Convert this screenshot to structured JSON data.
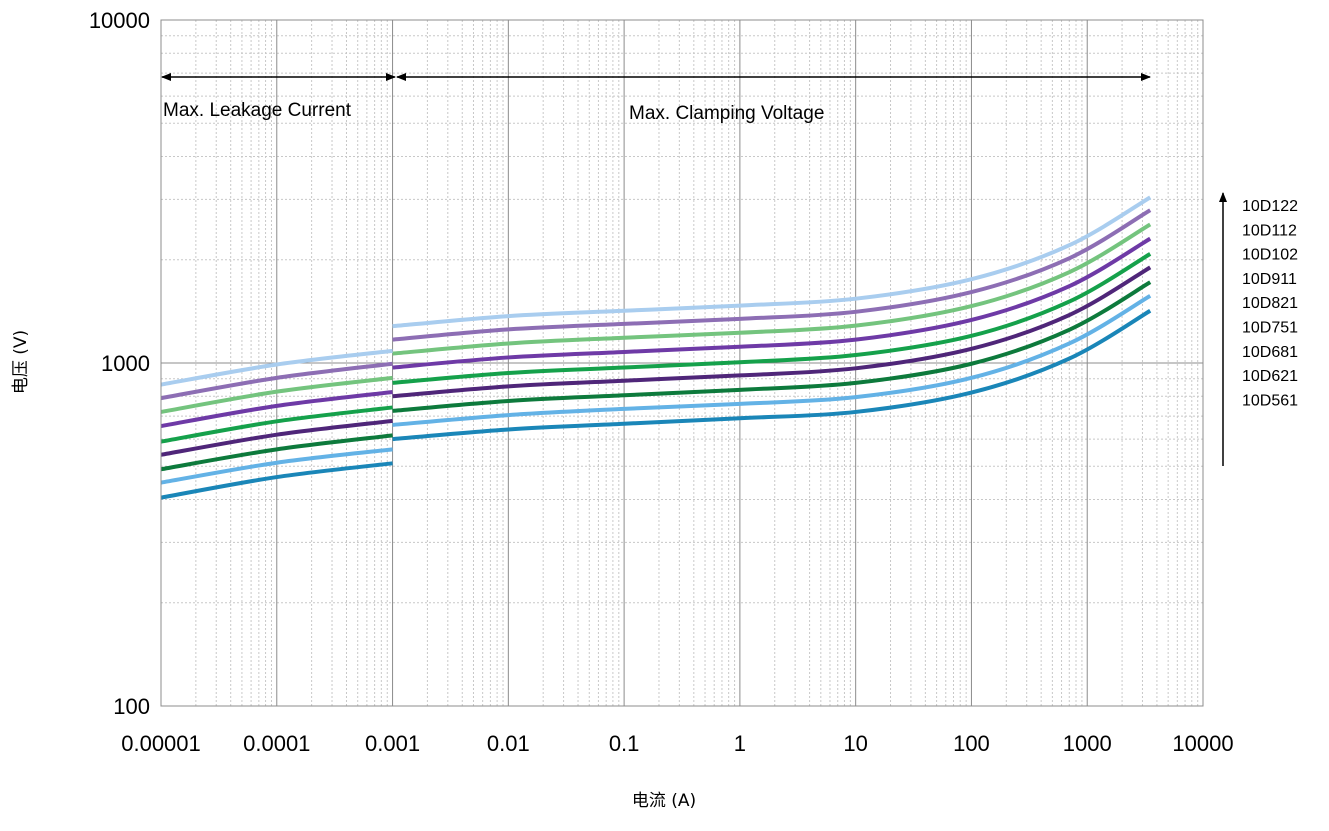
{
  "chart_data": {
    "type": "line",
    "title": "",
    "xlabel": "电流 (A)",
    "ylabel": "电压 (V)",
    "x_scale": "log",
    "y_scale": "log",
    "xlim": [
      1e-05,
      10000
    ],
    "ylim": [
      100,
      10000
    ],
    "grid": true,
    "x_ticks": [
      "0.00001",
      "0.0001",
      "0.001",
      "0.01",
      "0.1",
      "1",
      "10",
      "100",
      "1000",
      "10000"
    ],
    "y_ticks": [
      "100",
      "1000",
      "10000"
    ],
    "annotations": [
      {
        "text": "Max. Leakage Current",
        "x_range": [
          1e-05,
          0.001
        ]
      },
      {
        "text": "Max. Clamping Voltage",
        "x_range": [
          0.001,
          3500
        ]
      }
    ],
    "legend": {
      "placement": "right",
      "order_arrow": "up",
      "entries": [
        "10D122",
        "10D112",
        "10D102",
        "10D911",
        "10D821",
        "10D751",
        "10D681",
        "10D621",
        "10D561"
      ]
    },
    "series": [
      {
        "name": "10D561",
        "color": "#1a86b8",
        "segments": [
          {
            "x": [
              1e-05,
              0.0001,
              0.001
            ],
            "y": [
              405,
              465,
              510
            ]
          },
          {
            "x": [
              0.001,
              0.01,
              0.1,
              1,
              10,
              100,
              700,
              3500
            ],
            "y": [
              600,
              640,
              665,
              690,
              720,
              820,
              1030,
              1420
            ]
          }
        ]
      },
      {
        "name": "10D621",
        "color": "#63b2e6",
        "segments": [
          {
            "x": [
              1e-05,
              0.0001,
              0.001
            ],
            "y": [
              448,
              512,
              560
            ]
          },
          {
            "x": [
              0.001,
              0.01,
              0.1,
              1,
              10,
              100,
              700,
              3500
            ],
            "y": [
              660,
              705,
              735,
              760,
              795,
              905,
              1140,
              1570
            ]
          }
        ]
      },
      {
        "name": "10D681",
        "color": "#0d7a3c",
        "segments": [
          {
            "x": [
              1e-05,
              0.0001,
              0.001
            ],
            "y": [
              490,
              560,
              615
            ]
          },
          {
            "x": [
              0.001,
              0.01,
              0.1,
              1,
              10,
              100,
              700,
              3500
            ],
            "y": [
              725,
              775,
              805,
              835,
              875,
              995,
              1250,
              1720
            ]
          }
        ]
      },
      {
        "name": "10D751",
        "color": "#4f2679",
        "segments": [
          {
            "x": [
              1e-05,
              0.0001,
              0.001
            ],
            "y": [
              540,
              618,
              678
            ]
          },
          {
            "x": [
              0.001,
              0.01,
              0.1,
              1,
              10,
              100,
              700,
              3500
            ],
            "y": [
              800,
              855,
              888,
              920,
              965,
              1100,
              1380,
              1900
            ]
          }
        ]
      },
      {
        "name": "10D821",
        "color": "#15a14b",
        "segments": [
          {
            "x": [
              1e-05,
              0.0001,
              0.001
            ],
            "y": [
              590,
              676,
              742
            ]
          },
          {
            "x": [
              0.001,
              0.01,
              0.1,
              1,
              10,
              100,
              700,
              3500
            ],
            "y": [
              875,
              935,
              970,
              1005,
              1055,
              1200,
              1510,
              2080
            ]
          }
        ]
      },
      {
        "name": "10D911",
        "color": "#6e3aa6",
        "segments": [
          {
            "x": [
              1e-05,
              0.0001,
              0.001
            ],
            "y": [
              655,
              750,
              823
            ]
          },
          {
            "x": [
              0.001,
              0.01,
              0.1,
              1,
              10,
              100,
              700,
              3500
            ],
            "y": [
              970,
              1038,
              1077,
              1115,
              1170,
              1335,
              1675,
              2305
            ]
          }
        ]
      },
      {
        "name": "10D102",
        "color": "#74c47e",
        "segments": [
          {
            "x": [
              1e-05,
              0.0001,
              0.001
            ],
            "y": [
              720,
              825,
              905
            ]
          },
          {
            "x": [
              0.001,
              0.01,
              0.1,
              1,
              10,
              100,
              700,
              3500
            ],
            "y": [
              1065,
              1140,
              1185,
              1225,
              1285,
              1465,
              1840,
              2535
            ]
          }
        ]
      },
      {
        "name": "10D112",
        "color": "#8d6eb4",
        "segments": [
          {
            "x": [
              1e-05,
              0.0001,
              0.001
            ],
            "y": [
              790,
              905,
              995
            ]
          },
          {
            "x": [
              0.001,
              0.01,
              0.1,
              1,
              10,
              100,
              700,
              3500
            ],
            "y": [
              1170,
              1253,
              1300,
              1345,
              1410,
              1610,
              2020,
              2790
            ]
          }
        ]
      },
      {
        "name": "10D122",
        "color": "#a9cdef",
        "segments": [
          {
            "x": [
              1e-05,
              0.0001,
              0.001
            ],
            "y": [
              865,
              990,
              1085
            ]
          },
          {
            "x": [
              0.001,
              0.01,
              0.1,
              1,
              10,
              100,
              700,
              3500
            ],
            "y": [
              1280,
              1370,
              1420,
              1470,
              1540,
              1755,
              2205,
              3040
            ]
          }
        ]
      }
    ]
  }
}
